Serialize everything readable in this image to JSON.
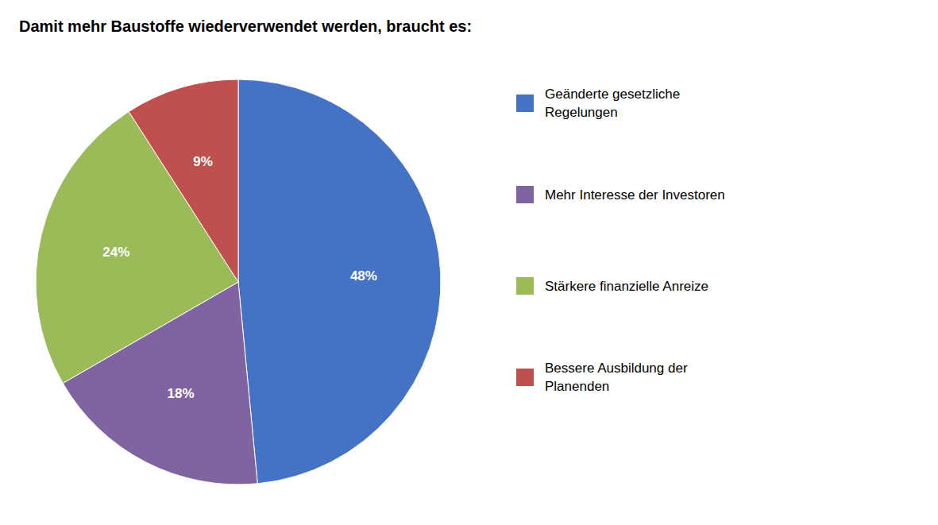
{
  "chart_data": {
    "type": "pie",
    "title": "Damit mehr Baustoffe wiederverwendet werden, braucht es:",
    "categories": [
      "Geänderte gesetzliche\nRegelungen",
      "Mehr Interesse der Investoren",
      "Stärkere finanzielle Anreize",
      "Bessere Ausbildung der\nPlanenden"
    ],
    "values": [
      48,
      18,
      24,
      9
    ],
    "value_labels": [
      "48%",
      "18%",
      "24%",
      "9%"
    ],
    "colors": [
      "#4472C4",
      "#8064A2",
      "#9BBB59",
      "#C0504D"
    ],
    "data_labels": true,
    "legend": "right"
  }
}
